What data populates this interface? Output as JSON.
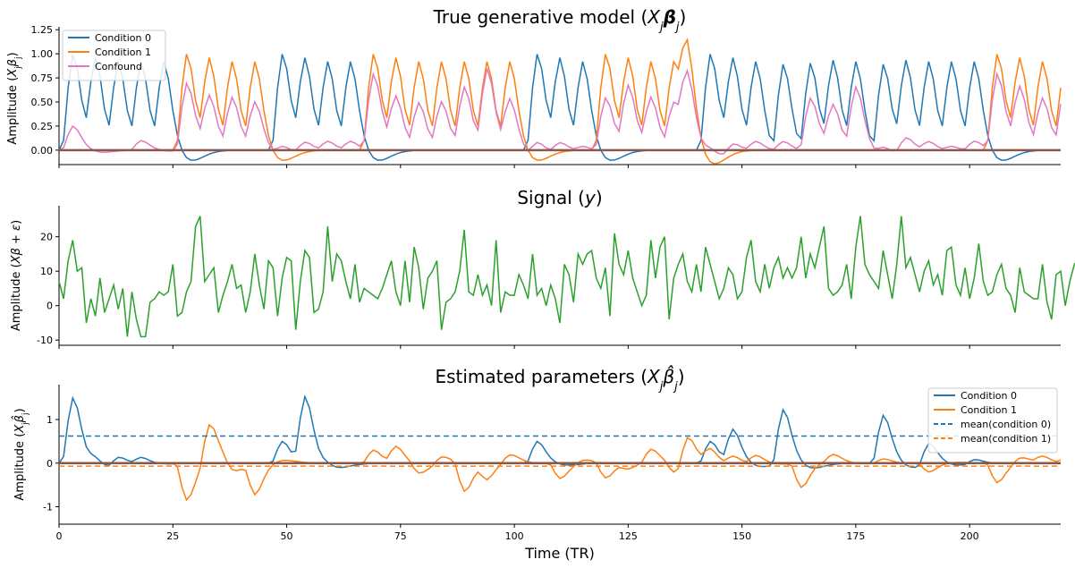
{
  "figure": {
    "xlabel": "Time (TR)",
    "x_ticks": [
      0,
      25,
      50,
      75,
      100,
      125,
      150,
      175,
      200
    ]
  },
  "colors": {
    "c0": "#1f77b4",
    "c1": "#ff7f0e",
    "confound": "#e377c2",
    "signal": "#2ca02c"
  },
  "chart_data": [
    {
      "type": "line",
      "title": "True generative model (X_jβ_j)",
      "ylabel": "Amplitude (X_jβ_j)",
      "xlim": [
        0,
        220
      ],
      "ylim": [
        -0.15,
        1.28
      ],
      "y_ticks": [
        0.0,
        0.25,
        0.5,
        0.75,
        1.0,
        1.25
      ],
      "legend": "top-left",
      "series": [
        {
          "name": "Condition 0",
          "onsets": [
            0,
            5,
            10,
            15,
            20,
            46,
            51,
            56,
            61,
            102,
            107,
            112,
            140,
            145,
            150,
            156,
            162,
            167,
            172,
            178,
            183,
            188,
            193,
            198
          ],
          "peak": 1.0
        },
        {
          "name": "Condition 1",
          "onsets": [
            25,
            30,
            35,
            40,
            66,
            71,
            76,
            81,
            86,
            91,
            96,
            117,
            122,
            127,
            132,
            135,
            203,
            208,
            213,
            218
          ],
          "peak": 1.0
        },
        {
          "name": "Confound",
          "onsets": [
            0,
            15,
            25,
            30,
            35,
            40,
            46,
            51,
            56,
            61,
            66,
            71,
            76,
            81,
            86,
            91,
            96,
            102,
            107,
            112,
            117,
            122,
            127,
            132,
            135,
            140,
            145,
            150,
            156,
            162,
            167,
            172,
            178,
            183,
            188,
            193,
            198,
            203,
            208,
            213,
            218
          ],
          "peaks": [
            0.25,
            0.1,
            0.7,
            0.6,
            0.6,
            0.55,
            0.1,
            0.1,
            0.1,
            0.1,
            0.8,
            0.6,
            0.55,
            0.55,
            0.7,
            0.9,
            0.6,
            0.15,
            0.1,
            0.05,
            0.55,
            0.7,
            0.6,
            0.55,
            0.75,
            0.1,
            0.1,
            0.1,
            0.1,
            0.55,
            0.5,
            0.7,
            0.1,
            0.15,
            0.1,
            0.05,
            0.1,
            0.8,
            0.7,
            0.6,
            0.75
          ]
        }
      ]
    },
    {
      "type": "line",
      "title": "Signal (y)",
      "ylabel": "Amplitude (Xβ + ε)",
      "xlim": [
        0,
        220
      ],
      "ylim": [
        -11.5,
        29
      ],
      "y_ticks": [
        -10,
        0,
        10,
        20
      ],
      "series": [
        {
          "name": "",
          "values": [
            7,
            2,
            13,
            19,
            10,
            11,
            -5,
            2,
            -3,
            8,
            -2,
            2,
            6,
            -1,
            5,
            -9,
            4,
            -4,
            -9,
            -9,
            1,
            2,
            4,
            3,
            4,
            12,
            -3,
            -2,
            4,
            7,
            23,
            26,
            7,
            9,
            11,
            -2,
            3,
            7,
            12,
            5,
            6,
            -2,
            4,
            15,
            6,
            -1,
            13,
            11,
            -3,
            8,
            14,
            13,
            -7,
            7,
            16,
            14,
            -2,
            -1,
            4,
            23,
            7,
            15,
            13,
            7,
            2,
            12,
            1,
            5,
            4,
            3,
            2,
            5,
            9,
            13,
            4,
            0,
            13,
            1,
            17,
            11,
            -1,
            8,
            10,
            13,
            -7,
            1,
            2,
            4,
            10,
            22,
            4,
            3,
            9,
            3,
            6,
            0,
            19,
            -2,
            4,
            3,
            3,
            9,
            6,
            2,
            15,
            3,
            5,
            0,
            6,
            2,
            -5,
            12,
            9,
            1,
            15,
            12,
            15,
            16,
            8,
            5,
            11,
            -3,
            21,
            12,
            9,
            16,
            8,
            4,
            0,
            3,
            19,
            8,
            17,
            20,
            -4,
            8,
            12,
            15,
            7,
            4,
            12,
            4,
            17,
            12,
            7,
            2,
            5,
            11,
            9,
            2,
            4,
            14,
            19,
            7,
            4,
            12,
            5,
            11,
            14,
            8,
            11,
            8,
            11,
            20,
            8,
            15,
            11,
            17,
            23,
            5,
            3,
            4,
            6,
            12,
            2,
            17,
            26,
            12,
            9,
            7,
            5,
            16,
            9,
            2,
            12,
            26,
            11,
            14,
            9,
            4,
            10,
            13,
            6,
            9,
            3,
            16,
            17,
            6,
            3,
            11,
            2,
            8,
            18,
            7,
            3,
            4,
            9,
            12,
            5,
            3,
            -2,
            11,
            4,
            3,
            2,
            2,
            12,
            1,
            -4,
            9,
            10,
            0,
            7,
            12,
            14,
            13,
            5,
            -1,
            8
          ]
        }
      ]
    },
    {
      "type": "line",
      "title": "Estimated parameters (X_jβ̂_j)",
      "ylabel": "Amplitude (X_jβ̂_j)",
      "xlim": [
        0,
        220
      ],
      "ylim": [
        -1.4,
        1.8
      ],
      "y_ticks": [
        -1,
        0,
        1
      ],
      "legend": "top-right",
      "series": [
        {
          "name": "Condition 0",
          "events": [
            [
              0,
              1.5
            ],
            [
              5,
              0.2
            ],
            [
              10,
              0.2
            ],
            [
              15,
              0.15
            ],
            [
              46,
              0.5
            ],
            [
              51,
              1.55
            ],
            [
              56,
              0.1
            ],
            [
              102,
              0.5
            ],
            [
              140,
              0.5
            ],
            [
              145,
              0.8
            ],
            [
              156,
              1.25
            ],
            [
              178,
              1.1
            ],
            [
              188,
              0.5
            ],
            [
              198,
              0.1
            ]
          ]
        },
        {
          "name": "Condition 1",
          "events": [
            [
              25,
              -0.85
            ],
            [
              30,
              0.85
            ],
            [
              35,
              -0.15
            ],
            [
              40,
              -0.7
            ],
            [
              66,
              0.3
            ],
            [
              71,
              0.4
            ],
            [
              76,
              -0.2
            ],
            [
              81,
              0.15
            ],
            [
              86,
              -0.65
            ],
            [
              91,
              -0.4
            ],
            [
              96,
              0.15
            ],
            [
              107,
              -0.35
            ],
            [
              112,
              0.05
            ],
            [
              117,
              -0.35
            ],
            [
              122,
              -0.15
            ],
            [
              127,
              0.3
            ],
            [
              132,
              -0.2
            ],
            [
              135,
              0.65
            ],
            [
              140,
              0.35
            ],
            [
              145,
              0.2
            ],
            [
              150,
              0.2
            ],
            [
              160,
              -0.55
            ],
            [
              167,
              0.15
            ],
            [
              178,
              0.1
            ],
            [
              188,
              -0.2
            ],
            [
              203,
              -0.45
            ],
            [
              208,
              0.1
            ],
            [
              213,
              0.15
            ],
            [
              218,
              0.1
            ]
          ]
        },
        {
          "name": "mean(condition 0)",
          "value": 0.62,
          "dashed": true
        },
        {
          "name": "mean(condition 1)",
          "value": -0.07,
          "dashed": true
        }
      ]
    }
  ]
}
